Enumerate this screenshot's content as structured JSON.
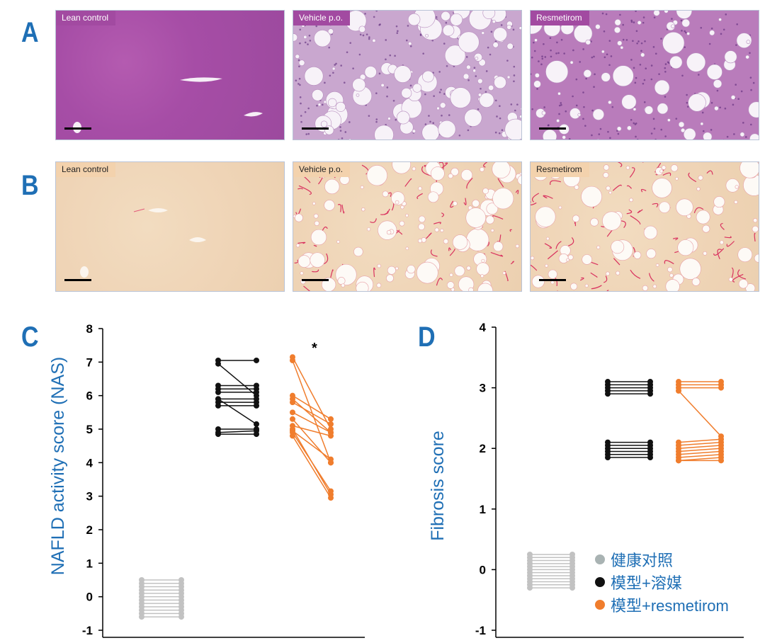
{
  "panels": {
    "a_letter": "A",
    "b_letter": "B",
    "c_letter": "C",
    "d_letter": "D"
  },
  "images": {
    "row_a": [
      "Lean control",
      "Vehicle p.o.",
      "Resmetirom"
    ],
    "row_b": [
      "Lean control",
      "Vehicle p.o.",
      "Resmetirom"
    ]
  },
  "colors": {
    "accent": "#1f6fb5",
    "lean": "#c2c2c2",
    "vehicle": "#111111",
    "resmetirom": "#f07d2d"
  },
  "legend": [
    {
      "label": "健康对照",
      "color": "#a9b3b3"
    },
    {
      "label": "模型+溶媒",
      "color": "#111111"
    },
    {
      "label": "模型+resmetirom",
      "color": "#f07d2d"
    }
  ],
  "chart_data": [
    {
      "type": "scatter",
      "title": "",
      "ylabel": "NAFLD activity score (NAS)",
      "xlabel": "",
      "ylim": [
        -1,
        8
      ],
      "yticks": [
        -1,
        0,
        1,
        2,
        3,
        4,
        5,
        6,
        7,
        8
      ],
      "annotation": "*",
      "series": [
        {
          "color": "lean",
          "pairs": [
            [
              0.5,
              0.5
            ],
            [
              0.4,
              0.4
            ],
            [
              0.3,
              0.3
            ],
            [
              0.2,
              0.2
            ],
            [
              0.1,
              0.1
            ],
            [
              0,
              0
            ],
            [
              -0.1,
              -0.1
            ],
            [
              -0.2,
              -0.2
            ],
            [
              -0.3,
              -0.3
            ],
            [
              -0.4,
              -0.4
            ],
            [
              -0.5,
              -0.5
            ],
            [
              -0.6,
              -0.6
            ]
          ]
        },
        {
          "color": "vehicle",
          "pairs": [
            [
              7.05,
              7.05
            ],
            [
              6.95,
              6.0
            ],
            [
              6.3,
              6.3
            ],
            [
              6.2,
              6.2
            ],
            [
              6.1,
              6.1
            ],
            [
              5.9,
              5.9
            ],
            [
              5.8,
              5.8
            ],
            [
              5.7,
              5.7
            ],
            [
              5.0,
              5.0
            ],
            [
              4.9,
              4.95
            ],
            [
              4.85,
              4.85
            ],
            [
              5.9,
              5.15
            ]
          ]
        },
        {
          "color": "resmetirom",
          "pairs": [
            [
              7.15,
              5.0
            ],
            [
              7.05,
              4.0
            ],
            [
              6.0,
              5.3
            ],
            [
              5.9,
              4.9
            ],
            [
              5.8,
              5.15
            ],
            [
              5.5,
              4.9
            ],
            [
              5.0,
              3.05
            ],
            [
              4.9,
              3.15
            ],
            [
              4.8,
              2.95
            ],
            [
              4.95,
              4.1
            ],
            [
              5.1,
              4.8
            ],
            [
              5.3,
              4.0
            ]
          ]
        }
      ]
    },
    {
      "type": "scatter",
      "title": "",
      "ylabel": "Fibrosis score",
      "xlabel": "",
      "ylim": [
        -1,
        4
      ],
      "yticks": [
        -1,
        0,
        1,
        2,
        3,
        4
      ],
      "series": [
        {
          "color": "lean",
          "pairs": [
            [
              0.25,
              0.25
            ],
            [
              0.2,
              0.2
            ],
            [
              0.15,
              0.15
            ],
            [
              0.1,
              0.1
            ],
            [
              0.05,
              0.05
            ],
            [
              0,
              0
            ],
            [
              -0.05,
              -0.05
            ],
            [
              -0.1,
              -0.1
            ],
            [
              -0.15,
              -0.15
            ],
            [
              -0.2,
              -0.2
            ],
            [
              -0.25,
              -0.25
            ],
            [
              -0.3,
              -0.3
            ]
          ]
        },
        {
          "color": "vehicle",
          "pairs": [
            [
              3.1,
              3.1
            ],
            [
              3.05,
              3.05
            ],
            [
              3.0,
              3.0
            ],
            [
              2.95,
              2.95
            ],
            [
              2.9,
              2.9
            ],
            [
              2.1,
              2.1
            ],
            [
              2.05,
              2.05
            ],
            [
              2.0,
              2.0
            ],
            [
              1.95,
              1.95
            ],
            [
              1.9,
              1.9
            ],
            [
              1.85,
              1.85
            ]
          ]
        },
        {
          "color": "resmetirom",
          "pairs": [
            [
              3.1,
              3.1
            ],
            [
              3.05,
              3.05
            ],
            [
              3.0,
              3.0
            ],
            [
              2.95,
              2.2
            ],
            [
              2.1,
              2.15
            ],
            [
              2.05,
              2.1
            ],
            [
              2.0,
              2.05
            ],
            [
              1.95,
              2.0
            ],
            [
              1.9,
              1.95
            ],
            [
              1.85,
              1.9
            ],
            [
              1.8,
              1.85
            ],
            [
              1.8,
              1.8
            ]
          ]
        }
      ]
    }
  ]
}
